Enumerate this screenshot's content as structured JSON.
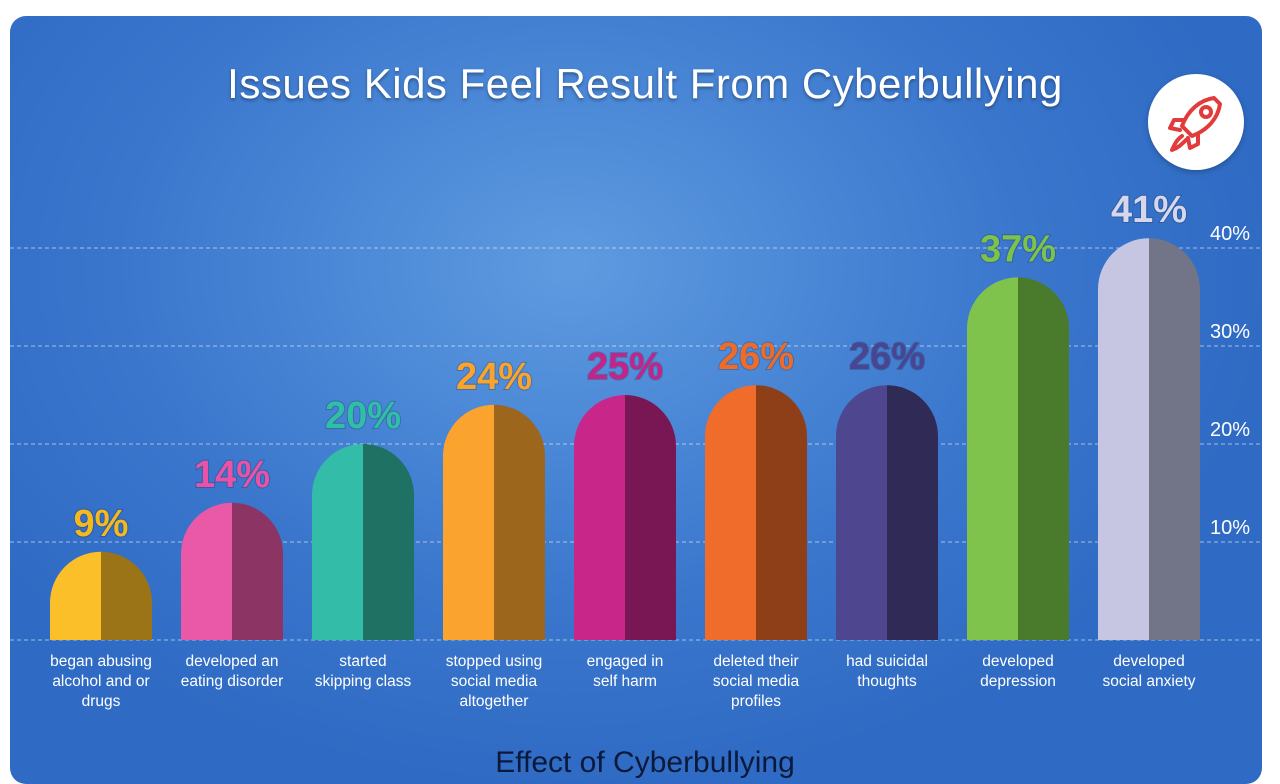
{
  "title": "Issues Kids Feel Result From Cyberbullying",
  "icon": "rocket-icon",
  "colors": {
    "background": "#3a76cc",
    "badge_icon": "#e23b3b"
  },
  "chart_data": {
    "type": "bar",
    "title": "Issues Kids Feel Result From Cyberbullying",
    "xlabel": "Effect of Cyberbullying",
    "ylabel": "",
    "ylim": [
      0,
      40
    ],
    "yticks": [
      "10%",
      "20%",
      "30%",
      "40%"
    ],
    "ytick_values": [
      10,
      20,
      30,
      40
    ],
    "grid": "horizontal-dashed",
    "categories": [
      [
        "began abusing",
        "alcohol and or",
        "drugs"
      ],
      [
        "developed an",
        "eating disorder"
      ],
      [
        "started",
        "skipping class"
      ],
      [
        "stopped using",
        "social media",
        "altogether"
      ],
      [
        "engaged in",
        "self harm"
      ],
      [
        "deleted their",
        "social media",
        "profiles"
      ],
      [
        "had suicidal",
        "thoughts"
      ],
      [
        "developed",
        "depression"
      ],
      [
        "developed",
        "social anxiety"
      ]
    ],
    "values": [
      9,
      14,
      20,
      24,
      25,
      26,
      26,
      37,
      41
    ],
    "value_labels": [
      "9%",
      "14%",
      "20%",
      "24%",
      "25%",
      "26%",
      "26%",
      "37%",
      "41%"
    ],
    "bar_colors": [
      {
        "light": "#fbbf2a",
        "dark": "#9a7417",
        "label": "#f5b81f"
      },
      {
        "light": "#ea58a8",
        "dark": "#8c3464",
        "label": "#e952a6"
      },
      {
        "light": "#33bca7",
        "dark": "#1f7263",
        "label": "#2fbea6"
      },
      {
        "light": "#fba32f",
        "dark": "#9c661d",
        "label": "#fba32a"
      },
      {
        "light": "#c9268a",
        "dark": "#781754",
        "label": "#c72289"
      },
      {
        "light": "#f06c2b",
        "dark": "#8f3f17",
        "label": "#f06a28"
      },
      {
        "light": "#4e4790",
        "dark": "#302b56",
        "label": "#4a4590"
      },
      {
        "light": "#7fc34c",
        "dark": "#4a7a2c",
        "label": "#7dc249"
      },
      {
        "light": "#c6c6e2",
        "dark": "#727488",
        "label": "#d6d6ec"
      }
    ]
  }
}
